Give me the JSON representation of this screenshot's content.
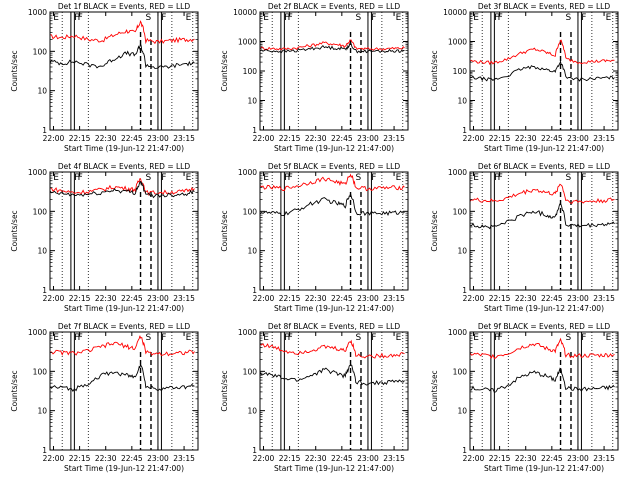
{
  "figure": {
    "background": "#ffffff",
    "colors": {
      "events": "#000000",
      "lld": "#ff0000",
      "axes": "#000000"
    }
  },
  "chart_data": [
    {
      "type": "line",
      "title": "Det 1f BLACK = Events, RED = LLD",
      "xlabel": "Start Time (19-Jun-12 21:47:00)",
      "ylabel": "Counts/sec",
      "xlim": [
        "21:58",
        "23:23"
      ],
      "ylim": [
        1,
        1000
      ],
      "yscale": "log",
      "x_ticks": [
        "22:00",
        "22:15",
        "22:30",
        "22:45",
        "23:00",
        "23:15"
      ],
      "y_ticks": [
        "1",
        "10",
        "100",
        "1000"
      ],
      "x": [
        "21:58",
        "22:05",
        "22:12",
        "22:20",
        "22:28",
        "22:35",
        "22:42",
        "22:47",
        "22:50",
        "22:53",
        "23:00",
        "23:08",
        "23:15",
        "23:21"
      ],
      "series": [
        {
          "color": "red",
          "values": [
            240,
            225,
            250,
            200,
            190,
            260,
            330,
            300,
            560,
            190,
            175,
            190,
            200,
            205
          ]
        },
        {
          "color": "black",
          "values": [
            55,
            50,
            55,
            45,
            42,
            65,
            90,
            80,
            140,
            45,
            38,
            42,
            48,
            50
          ]
        }
      ],
      "markers": {
        "letters": [
          "E",
          "F",
          "F",
          "S",
          "F",
          "E"
        ],
        "solid": [
          "22:10",
          "22:12",
          "23:00",
          "23:02"
        ],
        "dashed": [
          "22:50",
          "22:56"
        ],
        "dotted": [
          "22:05",
          "22:20",
          "23:08",
          "23:20"
        ]
      }
    },
    {
      "type": "line",
      "title": "Det 2f BLACK = Events, RED = LLD",
      "xlabel": "Start Time (19-Jun-12 21:47:00)",
      "ylabel": "Counts/sec",
      "xlim": [
        "21:58",
        "23:23"
      ],
      "ylim": [
        1,
        10000
      ],
      "yscale": "log",
      "x_ticks": [
        "22:00",
        "22:15",
        "22:30",
        "22:45",
        "23:00",
        "23:15"
      ],
      "y_ticks": [
        "1",
        "10",
        "100",
        "1000",
        "10000"
      ],
      "x": [
        "21:58",
        "22:05",
        "22:12",
        "22:20",
        "22:28",
        "22:35",
        "22:42",
        "22:47",
        "22:50",
        "22:53",
        "23:00",
        "23:08",
        "23:15",
        "23:21"
      ],
      "series": [
        {
          "color": "red",
          "values": [
            600,
            580,
            560,
            620,
            750,
            900,
            800,
            700,
            1100,
            580,
            560,
            570,
            580,
            600
          ]
        },
        {
          "color": "black",
          "values": [
            500,
            480,
            460,
            500,
            580,
            650,
            600,
            560,
            800,
            480,
            460,
            470,
            480,
            500
          ]
        }
      ],
      "markers": {
        "letters": [
          "E",
          "F",
          "F",
          "S",
          "F",
          "E"
        ],
        "solid": [
          "22:10",
          "22:12",
          "23:00",
          "23:02"
        ],
        "dashed": [
          "22:50",
          "22:56"
        ],
        "dotted": [
          "22:05",
          "22:20",
          "23:08",
          "23:20"
        ]
      }
    },
    {
      "type": "line",
      "title": "Det 3f BLACK = Events, RED = LLD",
      "xlabel": "Start Time (19-Jun-12 21:47:00)",
      "ylabel": "Counts/sec",
      "xlim": [
        "21:58",
        "23:23"
      ],
      "ylim": [
        1,
        10000
      ],
      "yscale": "log",
      "x_ticks": [
        "22:00",
        "22:15",
        "22:30",
        "22:45",
        "23:00",
        "23:15"
      ],
      "y_ticks": [
        "1",
        "10",
        "100",
        "1000",
        "10000"
      ],
      "x": [
        "21:58",
        "22:05",
        "22:12",
        "22:20",
        "22:28",
        "22:35",
        "22:42",
        "22:47",
        "22:50",
        "22:53",
        "23:00",
        "23:08",
        "23:15",
        "23:21"
      ],
      "series": [
        {
          "color": "red",
          "values": [
            220,
            200,
            190,
            260,
            420,
            550,
            420,
            330,
            1100,
            260,
            200,
            210,
            220,
            230
          ]
        },
        {
          "color": "black",
          "values": [
            60,
            55,
            50,
            70,
            120,
            140,
            110,
            95,
            200,
            60,
            52,
            55,
            58,
            60
          ]
        }
      ],
      "markers": {
        "letters": [
          "E",
          "F",
          "F",
          "S",
          "F",
          "E"
        ],
        "solid": [
          "22:10",
          "22:12",
          "23:00",
          "23:02"
        ],
        "dashed": [
          "22:50",
          "22:56"
        ],
        "dotted": [
          "22:05",
          "22:20",
          "23:08",
          "23:20"
        ]
      }
    },
    {
      "type": "line",
      "title": "Det 4f BLACK = Events, RED = LLD",
      "xlabel": "Start Time (19-Jun-12 21:47:00)",
      "ylabel": "Counts/sec",
      "xlim": [
        "21:58",
        "23:23"
      ],
      "ylim": [
        1,
        1000
      ],
      "yscale": "log",
      "x_ticks": [
        "22:00",
        "22:15",
        "22:30",
        "22:45",
        "23:00",
        "23:15"
      ],
      "y_ticks": [
        "1",
        "10",
        "100",
        "1000"
      ],
      "x": [
        "21:58",
        "22:05",
        "22:12",
        "22:20",
        "22:28",
        "22:35",
        "22:42",
        "22:47",
        "22:50",
        "22:53",
        "23:00",
        "23:08",
        "23:15",
        "23:21"
      ],
      "series": [
        {
          "color": "red",
          "values": [
            380,
            330,
            300,
            320,
            360,
            420,
            380,
            360,
            700,
            300,
            300,
            310,
            320,
            380
          ]
        },
        {
          "color": "black",
          "values": [
            300,
            280,
            260,
            270,
            300,
            350,
            320,
            300,
            560,
            260,
            255,
            265,
            280,
            320
          ]
        }
      ],
      "markers": {
        "letters": [
          "E",
          "F",
          "F",
          "S",
          "F",
          "E"
        ],
        "solid": [
          "22:10",
          "22:12",
          "23:00",
          "23:02"
        ],
        "dashed": [
          "22:50",
          "22:56"
        ],
        "dotted": [
          "22:05",
          "22:20",
          "23:08",
          "23:20"
        ]
      }
    },
    {
      "type": "line",
      "title": "Det 5f BLACK = Events, RED = LLD",
      "xlabel": "Start Time (19-Jun-12 21:47:00)",
      "ylabel": "Counts/sec",
      "xlim": [
        "21:58",
        "23:23"
      ],
      "ylim": [
        1,
        1000
      ],
      "yscale": "log",
      "x_ticks": [
        "22:00",
        "22:15",
        "22:30",
        "22:45",
        "23:00",
        "23:15"
      ],
      "y_ticks": [
        "1",
        "10",
        "100",
        "1000"
      ],
      "x": [
        "21:58",
        "22:05",
        "22:12",
        "22:20",
        "22:28",
        "22:35",
        "22:42",
        "22:47",
        "22:50",
        "22:53",
        "23:00",
        "23:08",
        "23:15",
        "23:21"
      ],
      "series": [
        {
          "color": "red",
          "values": [
            420,
            400,
            380,
            450,
            560,
            680,
            560,
            480,
            900,
            400,
            380,
            390,
            400,
            410
          ]
        },
        {
          "color": "black",
          "values": [
            95,
            90,
            85,
            110,
            160,
            200,
            160,
            140,
            280,
            95,
            88,
            90,
            92,
            95
          ]
        }
      ],
      "markers": {
        "letters": [
          "E",
          "F",
          "F",
          "S",
          "F",
          "E"
        ],
        "solid": [
          "22:10",
          "22:12",
          "23:00",
          "23:02"
        ],
        "dashed": [
          "22:50",
          "22:56"
        ],
        "dotted": [
          "22:05",
          "22:20",
          "23:08",
          "23:20"
        ]
      }
    },
    {
      "type": "line",
      "title": "Det 6f BLACK = Events, RED = LLD",
      "xlabel": "Start Time (19-Jun-12 21:47:00)",
      "ylabel": "Counts/sec",
      "xlim": [
        "21:58",
        "23:23"
      ],
      "ylim": [
        1,
        1000
      ],
      "yscale": "log",
      "x_ticks": [
        "22:00",
        "22:15",
        "22:30",
        "22:45",
        "23:00",
        "23:15"
      ],
      "y_ticks": [
        "1",
        "10",
        "100",
        "1000"
      ],
      "x": [
        "21:58",
        "22:05",
        "22:12",
        "22:20",
        "22:28",
        "22:35",
        "22:42",
        "22:47",
        "22:50",
        "22:53",
        "23:00",
        "23:08",
        "23:15",
        "23:21"
      ],
      "series": [
        {
          "color": "red",
          "values": [
            200,
            190,
            180,
            220,
            300,
            360,
            300,
            270,
            520,
            190,
            175,
            180,
            190,
            200
          ]
        },
        {
          "color": "black",
          "values": [
            45,
            42,
            40,
            55,
            80,
            100,
            80,
            70,
            160,
            45,
            42,
            44,
            46,
            48
          ]
        }
      ],
      "markers": {
        "letters": [
          "E",
          "F",
          "F",
          "S",
          "F",
          "E"
        ],
        "solid": [
          "22:10",
          "22:12",
          "23:00",
          "23:02"
        ],
        "dashed": [
          "22:50",
          "22:56"
        ],
        "dotted": [
          "22:05",
          "22:20",
          "23:08",
          "23:20"
        ]
      }
    },
    {
      "type": "line",
      "title": "Det 7f BLACK = Events, RED = LLD",
      "xlabel": "Start Time (19-Jun-12 21:47:00)",
      "ylabel": "Counts/sec",
      "xlim": [
        "21:58",
        "23:23"
      ],
      "ylim": [
        1,
        1000
      ],
      "yscale": "log",
      "x_ticks": [
        "22:00",
        "22:15",
        "22:30",
        "22:45",
        "23:00",
        "23:15"
      ],
      "y_ticks": [
        "1",
        "10",
        "100",
        "1000"
      ],
      "x": [
        "21:58",
        "22:05",
        "22:12",
        "22:20",
        "22:28",
        "22:35",
        "22:42",
        "22:47",
        "22:50",
        "22:53",
        "23:00",
        "23:08",
        "23:15",
        "23:21"
      ],
      "series": [
        {
          "color": "red",
          "values": [
            320,
            300,
            290,
            330,
            430,
            520,
            430,
            380,
            780,
            300,
            280,
            290,
            300,
            320
          ]
        },
        {
          "color": "black",
          "values": [
            40,
            38,
            35,
            50,
            80,
            95,
            80,
            70,
            150,
            40,
            36,
            38,
            40,
            42
          ]
        }
      ],
      "markers": {
        "letters": [
          "E",
          "F",
          "F",
          "S",
          "F",
          "E"
        ],
        "solid": [
          "22:10",
          "22:12",
          "23:00",
          "23:02"
        ],
        "dashed": [
          "22:50",
          "22:56"
        ],
        "dotted": [
          "22:05",
          "22:20",
          "23:08",
          "23:20"
        ]
      }
    },
    {
      "type": "line",
      "title": "Det 8f BLACK = Events, RED = LLD",
      "xlabel": "Start Time (19-Jun-12 21:47:00)",
      "ylabel": "Counts/sec",
      "xlim": [
        "21:58",
        "23:23"
      ],
      "ylim": [
        1,
        1000
      ],
      "yscale": "log",
      "x_ticks": [
        "22:00",
        "22:15",
        "22:30",
        "22:45",
        "23:00",
        "23:15"
      ],
      "y_ticks": [
        "1",
        "10",
        "100",
        "1000"
      ],
      "x": [
        "21:58",
        "22:05",
        "22:12",
        "22:20",
        "22:28",
        "22:35",
        "22:42",
        "22:47",
        "22:50",
        "22:53",
        "23:00",
        "23:08",
        "23:15",
        "23:21"
      ],
      "series": [
        {
          "color": "red",
          "values": [
            500,
            420,
            330,
            300,
            350,
            420,
            380,
            330,
            620,
            260,
            240,
            250,
            260,
            280
          ]
        },
        {
          "color": "black",
          "values": [
            90,
            80,
            65,
            60,
            80,
            110,
            90,
            75,
            150,
            55,
            50,
            52,
            55,
            58
          ]
        }
      ],
      "markers": {
        "letters": [
          "E",
          "F",
          "F",
          "S",
          "F",
          "E"
        ],
        "solid": [
          "22:10",
          "22:12",
          "23:00",
          "23:02"
        ],
        "dashed": [
          "22:50",
          "22:56"
        ],
        "dotted": [
          "22:05",
          "22:20",
          "23:08",
          "23:20"
        ]
      }
    },
    {
      "type": "line",
      "title": "Det 9f BLACK = Events, RED = LLD",
      "xlabel": "Start Time (19-Jun-12 21:47:00)",
      "ylabel": "Counts/sec",
      "xlim": [
        "21:58",
        "23:23"
      ],
      "ylim": [
        1,
        1000
      ],
      "yscale": "log",
      "x_ticks": [
        "22:00",
        "22:15",
        "22:30",
        "22:45",
        "23:00",
        "23:15"
      ],
      "y_ticks": [
        "1",
        "10",
        "100",
        "1000"
      ],
      "x": [
        "21:58",
        "22:05",
        "22:12",
        "22:20",
        "22:28",
        "22:35",
        "22:42",
        "22:47",
        "22:50",
        "22:53",
        "23:00",
        "23:08",
        "23:15",
        "23:21"
      ],
      "series": [
        {
          "color": "red",
          "values": [
            280,
            260,
            240,
            290,
            420,
            500,
            380,
            330,
            600,
            260,
            250,
            255,
            260,
            270
          ]
        },
        {
          "color": "black",
          "values": [
            38,
            35,
            32,
            45,
            75,
            95,
            75,
            60,
            110,
            38,
            35,
            36,
            38,
            40
          ]
        }
      ],
      "markers": {
        "letters": [
          "E",
          "F",
          "F",
          "S",
          "F",
          "E"
        ],
        "solid": [
          "22:10",
          "22:12",
          "23:00",
          "23:02"
        ],
        "dashed": [
          "22:50",
          "22:56"
        ],
        "dotted": [
          "22:05",
          "22:20",
          "23:08",
          "23:20"
        ]
      }
    }
  ]
}
